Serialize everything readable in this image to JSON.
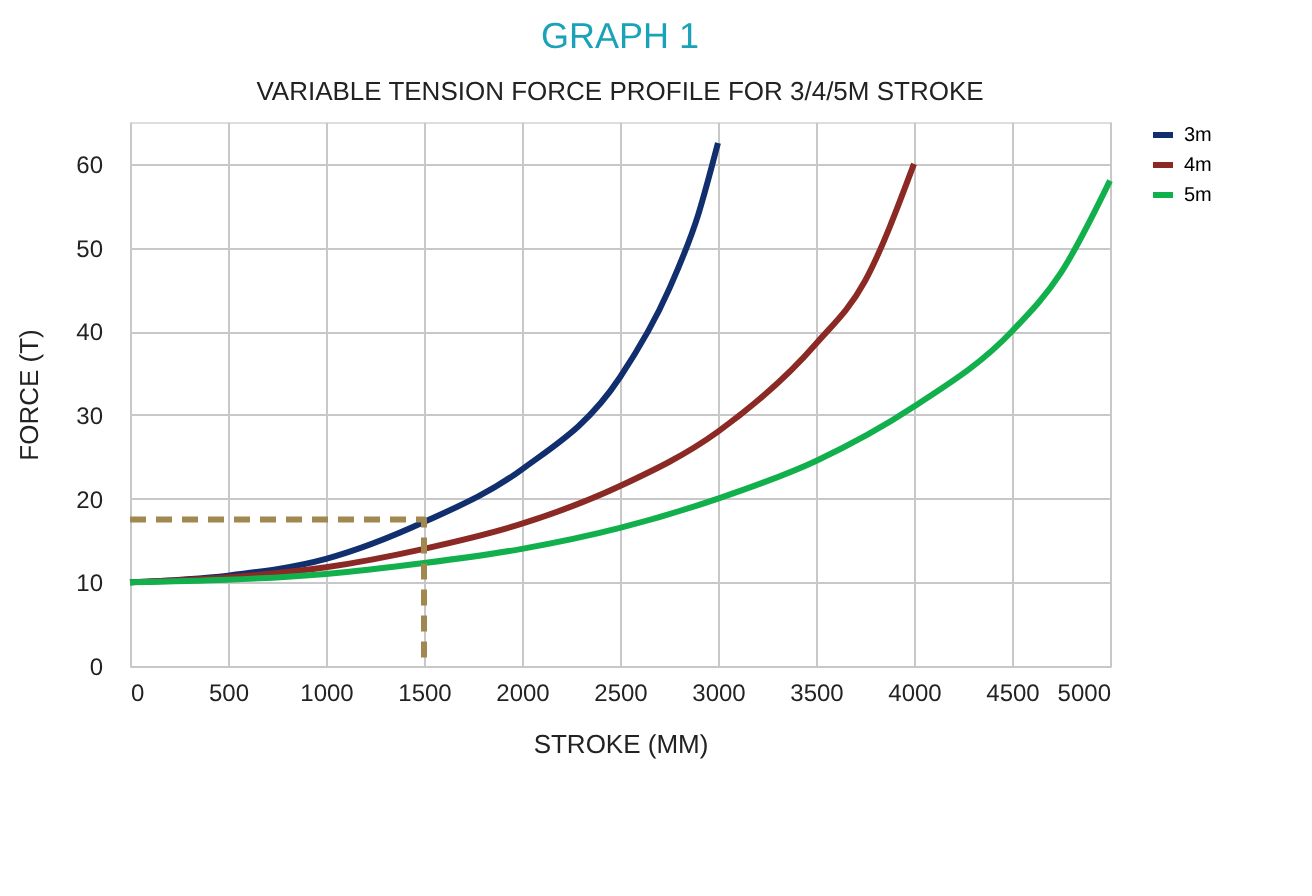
{
  "chart_data": {
    "type": "line",
    "title": "GRAPH 1",
    "subtitle": "VARIABLE TENSION FORCE PROFILE FOR 3/4/5M STROKE",
    "xlabel": "STROKE (MM)",
    "ylabel": "FORCE (T)",
    "xlim": [
      0,
      5000
    ],
    "xticks": [
      0,
      500,
      1000,
      1500,
      2000,
      2500,
      3000,
      3500,
      4000,
      4500,
      5000
    ],
    "ylim": [
      0,
      65
    ],
    "yticks": [
      0,
      10,
      20,
      30,
      40,
      50,
      60
    ],
    "grid": true,
    "legend": "right",
    "marker": "none",
    "line_style": "solid",
    "series": [
      {
        "name": "3m",
        "color": "#112f6e",
        "x": [
          0,
          500,
          1000,
          1500,
          2000,
          2500,
          2750,
          2900,
          3000
        ],
        "values": [
          10,
          10.8,
          12.8,
          17.2,
          23.5,
          34.5,
          45,
          54,
          62.5
        ]
      },
      {
        "name": "4m",
        "color": "#8b2a24",
        "x": [
          0,
          500,
          1000,
          1500,
          2000,
          2500,
          3000,
          3500,
          3750,
          4000
        ],
        "values": [
          10,
          10.6,
          11.8,
          14,
          17,
          21.5,
          28,
          38.5,
          46,
          60
        ]
      },
      {
        "name": "5m",
        "color": "#12b04c",
        "x": [
          0,
          1000,
          1500,
          2000,
          2500,
          3000,
          3500,
          4000,
          4500,
          4750,
          5000
        ],
        "values": [
          10,
          11,
          12.3,
          14,
          16.5,
          20,
          24.5,
          31,
          40,
          47,
          58
        ]
      },
      {
        "color": "#a08850",
        "line_style": "dashed",
        "x": [
          0,
          1500,
          1500
        ],
        "values": [
          17.5,
          17.5,
          0
        ]
      }
    ]
  }
}
